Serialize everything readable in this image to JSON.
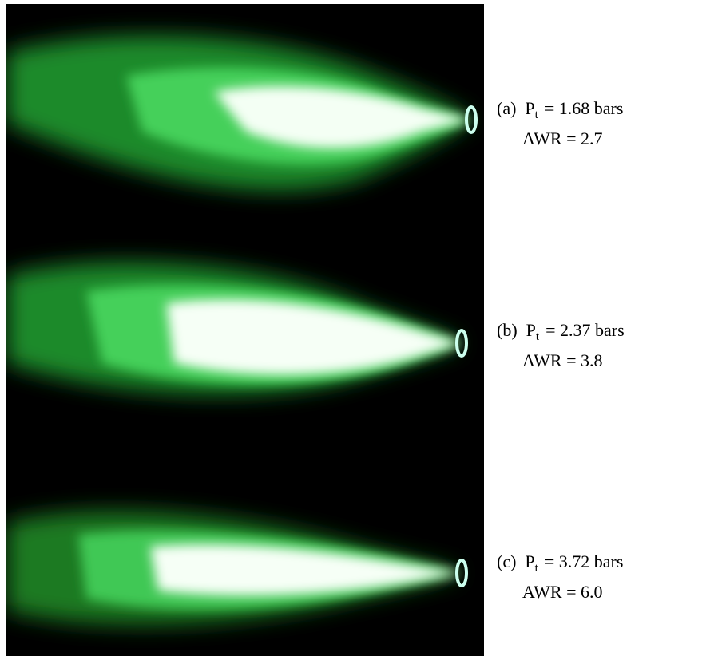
{
  "panels": [
    {
      "label": "(a)",
      "symbol": "P",
      "subscript": "t",
      "pressure": "= 1.68 bars",
      "awr": "AWR = 2.7"
    },
    {
      "label": "(b)",
      "symbol": "P",
      "subscript": "t",
      "pressure": "= 2.37 bars",
      "awr": "AWR = 3.8"
    },
    {
      "label": "(c)",
      "symbol": "P",
      "subscript": "t",
      "pressure": "= 3.72 bars",
      "awr": "AWR = 6.0"
    }
  ]
}
